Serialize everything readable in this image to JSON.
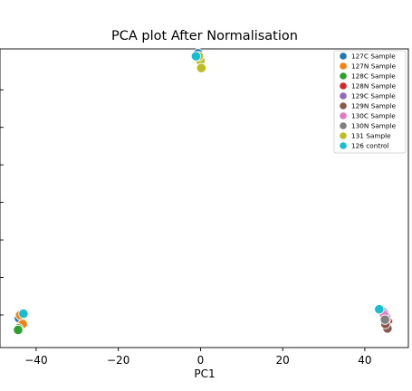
{
  "chart_data": {
    "type": "scatter",
    "title": "PCA plot After Normalisation",
    "xlabel": "PC1",
    "ylabel": "",
    "xlim": [
      -48.8,
      50.6
    ],
    "ylim": [
      -1.28,
      0.75
    ],
    "xticks": [
      -40,
      -20,
      0,
      20,
      40
    ],
    "xtick_labels": [
      "−40",
      "−20",
      "0",
      "20",
      "40"
    ],
    "grid": false,
    "legend_position": "top-right",
    "series": [
      {
        "name": "127C Sample",
        "color": "#1f77b4",
        "points": [
          [
            -44.2,
            -1.08
          ],
          [
            44.6,
            -1.04
          ],
          [
            -0.6,
            0.72
          ]
        ]
      },
      {
        "name": "127N Sample",
        "color": "#ff7f0e",
        "points": [
          [
            -43.3,
            -1.12
          ],
          [
            -43.9,
            -1.06
          ]
        ]
      },
      {
        "name": "128C Sample",
        "color": "#2ca02c",
        "points": [
          [
            -44.3,
            -1.15
          ],
          [
            -44.4,
            -1.16
          ]
        ]
      },
      {
        "name": "128N Sample",
        "color": "#d62728",
        "points": [
          [
            45.6,
            -1.1
          ],
          [
            45.3,
            -1.08
          ]
        ]
      },
      {
        "name": "129C Sample",
        "color": "#9467bd",
        "points": [
          [
            44.8,
            -1.05
          ],
          [
            45.1,
            -1.07
          ]
        ]
      },
      {
        "name": "129N Sample",
        "color": "#8c564b",
        "points": [
          [
            45.2,
            -1.13
          ],
          [
            45.5,
            -1.15
          ],
          [
            45.0,
            -1.12
          ]
        ]
      },
      {
        "name": "130C Sample",
        "color": "#e377c2",
        "points": [
          [
            44.7,
            -1.06
          ]
        ]
      },
      {
        "name": "130N Sample",
        "color": "#7f7f7f",
        "points": [
          [
            44.9,
            -1.09
          ]
        ]
      },
      {
        "name": "131 Sample",
        "color": "#bcbd22",
        "points": [
          [
            0.0,
            0.67
          ],
          [
            0.2,
            0.62
          ],
          [
            -0.4,
            0.7
          ]
        ]
      },
      {
        "name": "126 control",
        "color": "#17becf",
        "points": [
          [
            -43.1,
            -1.05
          ],
          [
            -1.1,
            0.7
          ],
          [
            43.5,
            -1.02
          ]
        ]
      }
    ]
  }
}
